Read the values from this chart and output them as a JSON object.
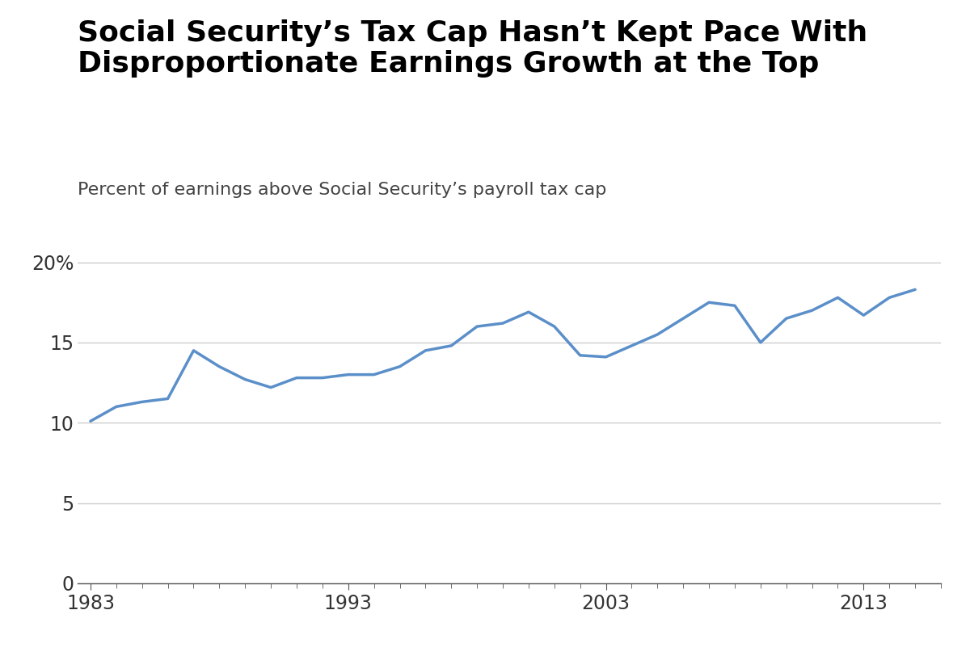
{
  "title_line1": "Social Security’s Tax Cap Hasn’t Kept Pace With",
  "title_line2": "Disproportionate Earnings Growth at the Top",
  "subtitle": "Percent of earnings above Social Security’s payroll tax cap",
  "years": [
    1983,
    1984,
    1985,
    1986,
    1987,
    1988,
    1989,
    1990,
    1991,
    1992,
    1993,
    1994,
    1995,
    1996,
    1997,
    1998,
    1999,
    2000,
    2001,
    2002,
    2003,
    2004,
    2005,
    2006,
    2007,
    2008,
    2009,
    2010,
    2011,
    2012,
    2013,
    2014,
    2015
  ],
  "values": [
    10.1,
    11.0,
    11.3,
    11.5,
    14.5,
    13.5,
    12.7,
    12.2,
    12.8,
    12.8,
    13.0,
    13.0,
    13.5,
    14.5,
    14.8,
    16.0,
    16.2,
    16.9,
    16.0,
    14.2,
    14.1,
    14.8,
    15.5,
    16.5,
    17.5,
    17.3,
    15.0,
    16.5,
    17.0,
    17.8,
    16.7,
    17.8,
    18.3
  ],
  "line_color": "#5b8fc9",
  "line_width": 2.5,
  "yticks": [
    0,
    5,
    10,
    15,
    20
  ],
  "ytick_labels": [
    "0",
    "5",
    "10",
    "15",
    "20%"
  ],
  "xticks": [
    1983,
    1993,
    2003,
    2013
  ],
  "ylim": [
    0,
    21
  ],
  "xlim": [
    1982.5,
    2016
  ],
  "background_color": "#ffffff",
  "grid_color": "#cccccc",
  "title_fontsize": 26,
  "subtitle_fontsize": 16,
  "tick_fontsize": 17
}
